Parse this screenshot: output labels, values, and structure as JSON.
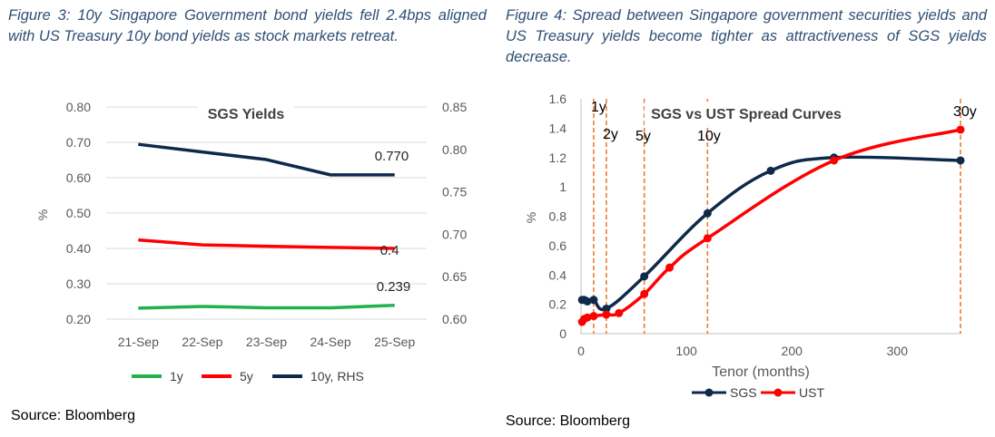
{
  "figure3": {
    "caption": "Figure 3: 10y Singapore Government bond yields fell 2.4bps aligned with US Treasury 10y bond yields as stock markets retreat.",
    "source": "Source: Bloomberg"
  },
  "figure4": {
    "caption": "Figure 4: Spread between Singapore government securities yields and US Treasury yields become tighter as attractiveness of SGS yields decrease.",
    "source": "Source: Bloomberg"
  },
  "chart_data": [
    {
      "type": "line",
      "title": "SGS Yields",
      "ylabel": "%",
      "categories": [
        "21-Sep",
        "22-Sep",
        "23-Sep",
        "24-Sep",
        "25-Sep"
      ],
      "ylim": [
        0.2,
        0.8
      ],
      "y_ticks": [
        "0.20",
        "0.30",
        "0.40",
        "0.50",
        "0.60",
        "0.70",
        "0.80"
      ],
      "y2lim": [
        0.6,
        0.85
      ],
      "y2_ticks": [
        "0.60",
        "0.65",
        "0.70",
        "0.75",
        "0.80",
        "0.85"
      ],
      "legend_position": "bottom",
      "series": [
        {
          "name": "1y",
          "axis": "left",
          "color": "#22b14c",
          "values": [
            0.231,
            0.236,
            0.232,
            0.232,
            0.239
          ],
          "end_label": "0.239"
        },
        {
          "name": "5y",
          "axis": "left",
          "color": "#ff0000",
          "values": [
            0.424,
            0.41,
            0.406,
            0.403,
            0.4
          ],
          "end_label": "0.4"
        },
        {
          "name": "10y, RHS",
          "axis": "right",
          "color": "#0d2a4a",
          "values": [
            0.806,
            0.797,
            0.788,
            0.77,
            0.77
          ],
          "end_label": "0.770"
        }
      ]
    },
    {
      "type": "line",
      "title": "SGS vs UST Spread Curves",
      "xlabel": "Tenor (months)",
      "ylabel": "%",
      "xlim": [
        0,
        360
      ],
      "x_ticks": [
        "0",
        "100",
        "200",
        "300"
      ],
      "ylim": [
        0,
        1.6
      ],
      "y_ticks": [
        "0",
        "0.2",
        "0.4",
        "0.6",
        "0.8",
        "1",
        "1.2",
        "1.4",
        "1.6"
      ],
      "legend_position": "bottom",
      "reference_lines": [
        {
          "x": 12,
          "label": "1y"
        },
        {
          "x": 24,
          "label": "2y"
        },
        {
          "x": 60,
          "label": "5y"
        },
        {
          "x": 120,
          "label": "10y"
        },
        {
          "x": 360,
          "label": "30y"
        }
      ],
      "series": [
        {
          "name": "SGS",
          "color": "#0d2a4a",
          "x": [
            1,
            3,
            6,
            12,
            24,
            60,
            120,
            180,
            240,
            360
          ],
          "values": [
            0.23,
            0.23,
            0.22,
            0.23,
            0.17,
            0.39,
            0.82,
            1.11,
            1.2,
            1.18
          ]
        },
        {
          "name": "UST",
          "color": "#ff0000",
          "x": [
            1,
            3,
            6,
            12,
            24,
            36,
            60,
            84,
            120,
            240,
            360
          ],
          "values": [
            0.08,
            0.1,
            0.11,
            0.12,
            0.13,
            0.14,
            0.27,
            0.45,
            0.65,
            1.18,
            1.39
          ]
        }
      ]
    }
  ]
}
